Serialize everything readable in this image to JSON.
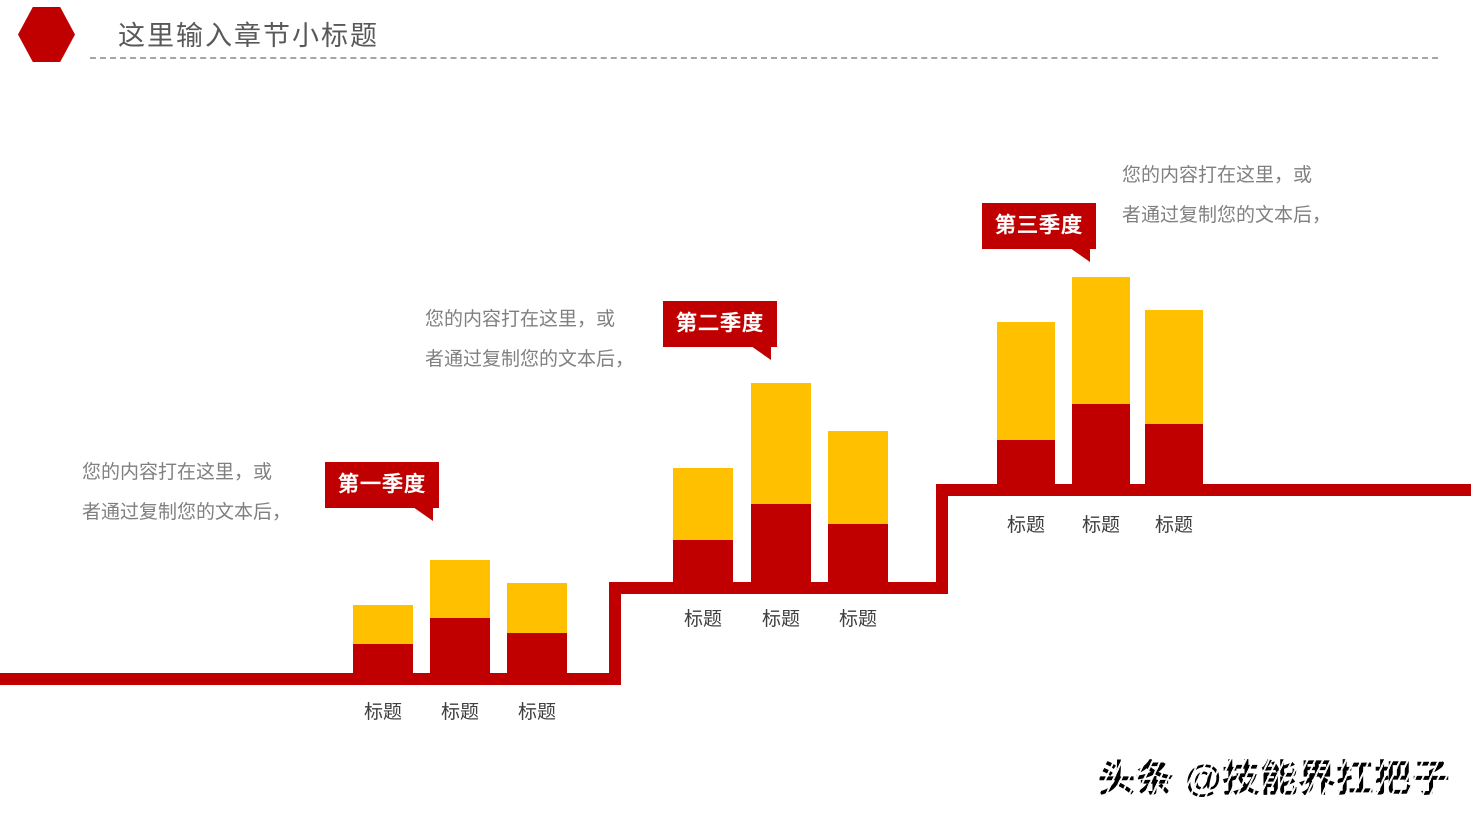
{
  "header": {
    "title": "这里输入章节小标题"
  },
  "colors": {
    "accent_red": "#C00000",
    "accent_yellow": "#FFC000",
    "title_gray": "#595959",
    "body_gray": "#808080",
    "label_dark": "#3F3F3F",
    "watermark_black": "#000000"
  },
  "groups": [
    {
      "badge_label": "第一季度",
      "description": [
        "您的内容打在这里，或",
        "者通过复制您的文本后，"
      ],
      "bar_labels": [
        "标题",
        "标题",
        "标题"
      ]
    },
    {
      "badge_label": "第二季度",
      "description": [
        "您的内容打在这里，或",
        "者通过复制您的文本后，"
      ],
      "bar_labels": [
        "标题",
        "标题",
        "标题"
      ]
    },
    {
      "badge_label": "第三季度",
      "description": [
        "您的内容打在这里，或",
        "者通过复制您的文本后，"
      ],
      "bar_labels": [
        "标题",
        "标题",
        "标题"
      ]
    }
  ],
  "watermark": {
    "text": "头条 @技能界扛把子"
  },
  "chart_data": [
    {
      "type": "bar",
      "stacked": true,
      "title": "第一季度",
      "categories": [
        "标题",
        "标题",
        "标题"
      ],
      "series": [
        {
          "name": "下层(红)",
          "color": "#C00000",
          "values": [
            29,
            55,
            40
          ]
        },
        {
          "name": "上层(黄)",
          "color": "#FFC000",
          "values": [
            39,
            58,
            50
          ]
        }
      ],
      "note": "decorative stacked bars; heights in screen px, no numeric axis shown"
    },
    {
      "type": "bar",
      "stacked": true,
      "title": "第二季度",
      "categories": [
        "标题",
        "标题",
        "标题"
      ],
      "series": [
        {
          "name": "下层(红)",
          "color": "#C00000",
          "values": [
            42,
            78,
            58
          ]
        },
        {
          "name": "上层(黄)",
          "color": "#FFC000",
          "values": [
            72,
            121,
            93
          ]
        }
      ],
      "note": "decorative stacked bars; heights in screen px, no numeric axis shown"
    },
    {
      "type": "bar",
      "stacked": true,
      "title": "第三季度",
      "categories": [
        "标题",
        "标题",
        "标题"
      ],
      "series": [
        {
          "name": "下层(红)",
          "color": "#C00000",
          "values": [
            44,
            80,
            60
          ]
        },
        {
          "name": "上层(黄)",
          "color": "#FFC000",
          "values": [
            118,
            127,
            114
          ]
        }
      ],
      "note": "decorative stacked bars; heights in screen px, no numeric axis shown"
    }
  ]
}
